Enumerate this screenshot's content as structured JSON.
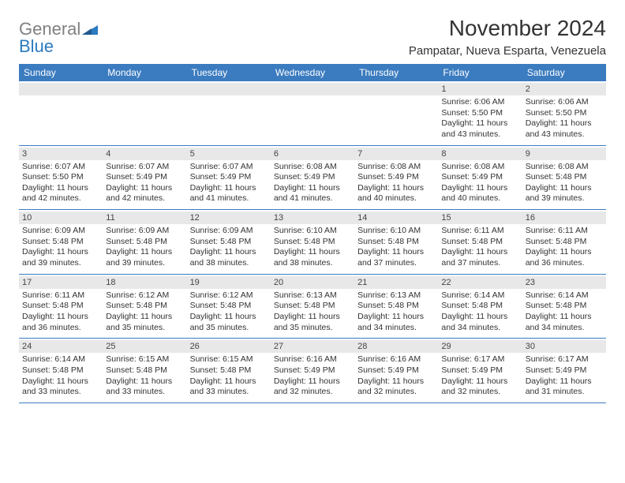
{
  "logo": {
    "word1": "General",
    "word2": "Blue"
  },
  "title": "November 2024",
  "location": "Pampatar, Nueva Esparta, Venezuela",
  "colors": {
    "header_bg": "#3b7bbf",
    "header_text": "#ffffff",
    "band_bg": "#e8e8e8",
    "border": "#3b7bbf",
    "body_text": "#333333",
    "logo_gray": "#808080",
    "logo_blue": "#2b7bbf",
    "page_bg": "#ffffff"
  },
  "typography": {
    "title_fontsize": 28,
    "location_fontsize": 15,
    "dow_fontsize": 12,
    "cell_fontsize": 10.5,
    "daynum_fontsize": 11,
    "logo_fontsize": 22
  },
  "days_of_week": [
    "Sunday",
    "Monday",
    "Tuesday",
    "Wednesday",
    "Thursday",
    "Friday",
    "Saturday"
  ],
  "weeks": [
    [
      null,
      null,
      null,
      null,
      null,
      {
        "n": "1",
        "sr": "Sunrise: 6:06 AM",
        "ss": "Sunset: 5:50 PM",
        "d1": "Daylight: 11 hours",
        "d2": "and 43 minutes."
      },
      {
        "n": "2",
        "sr": "Sunrise: 6:06 AM",
        "ss": "Sunset: 5:50 PM",
        "d1": "Daylight: 11 hours",
        "d2": "and 43 minutes."
      }
    ],
    [
      {
        "n": "3",
        "sr": "Sunrise: 6:07 AM",
        "ss": "Sunset: 5:50 PM",
        "d1": "Daylight: 11 hours",
        "d2": "and 42 minutes."
      },
      {
        "n": "4",
        "sr": "Sunrise: 6:07 AM",
        "ss": "Sunset: 5:49 PM",
        "d1": "Daylight: 11 hours",
        "d2": "and 42 minutes."
      },
      {
        "n": "5",
        "sr": "Sunrise: 6:07 AM",
        "ss": "Sunset: 5:49 PM",
        "d1": "Daylight: 11 hours",
        "d2": "and 41 minutes."
      },
      {
        "n": "6",
        "sr": "Sunrise: 6:08 AM",
        "ss": "Sunset: 5:49 PM",
        "d1": "Daylight: 11 hours",
        "d2": "and 41 minutes."
      },
      {
        "n": "7",
        "sr": "Sunrise: 6:08 AM",
        "ss": "Sunset: 5:49 PM",
        "d1": "Daylight: 11 hours",
        "d2": "and 40 minutes."
      },
      {
        "n": "8",
        "sr": "Sunrise: 6:08 AM",
        "ss": "Sunset: 5:49 PM",
        "d1": "Daylight: 11 hours",
        "d2": "and 40 minutes."
      },
      {
        "n": "9",
        "sr": "Sunrise: 6:08 AM",
        "ss": "Sunset: 5:48 PM",
        "d1": "Daylight: 11 hours",
        "d2": "and 39 minutes."
      }
    ],
    [
      {
        "n": "10",
        "sr": "Sunrise: 6:09 AM",
        "ss": "Sunset: 5:48 PM",
        "d1": "Daylight: 11 hours",
        "d2": "and 39 minutes."
      },
      {
        "n": "11",
        "sr": "Sunrise: 6:09 AM",
        "ss": "Sunset: 5:48 PM",
        "d1": "Daylight: 11 hours",
        "d2": "and 39 minutes."
      },
      {
        "n": "12",
        "sr": "Sunrise: 6:09 AM",
        "ss": "Sunset: 5:48 PM",
        "d1": "Daylight: 11 hours",
        "d2": "and 38 minutes."
      },
      {
        "n": "13",
        "sr": "Sunrise: 6:10 AM",
        "ss": "Sunset: 5:48 PM",
        "d1": "Daylight: 11 hours",
        "d2": "and 38 minutes."
      },
      {
        "n": "14",
        "sr": "Sunrise: 6:10 AM",
        "ss": "Sunset: 5:48 PM",
        "d1": "Daylight: 11 hours",
        "d2": "and 37 minutes."
      },
      {
        "n": "15",
        "sr": "Sunrise: 6:11 AM",
        "ss": "Sunset: 5:48 PM",
        "d1": "Daylight: 11 hours",
        "d2": "and 37 minutes."
      },
      {
        "n": "16",
        "sr": "Sunrise: 6:11 AM",
        "ss": "Sunset: 5:48 PM",
        "d1": "Daylight: 11 hours",
        "d2": "and 36 minutes."
      }
    ],
    [
      {
        "n": "17",
        "sr": "Sunrise: 6:11 AM",
        "ss": "Sunset: 5:48 PM",
        "d1": "Daylight: 11 hours",
        "d2": "and 36 minutes."
      },
      {
        "n": "18",
        "sr": "Sunrise: 6:12 AM",
        "ss": "Sunset: 5:48 PM",
        "d1": "Daylight: 11 hours",
        "d2": "and 35 minutes."
      },
      {
        "n": "19",
        "sr": "Sunrise: 6:12 AM",
        "ss": "Sunset: 5:48 PM",
        "d1": "Daylight: 11 hours",
        "d2": "and 35 minutes."
      },
      {
        "n": "20",
        "sr": "Sunrise: 6:13 AM",
        "ss": "Sunset: 5:48 PM",
        "d1": "Daylight: 11 hours",
        "d2": "and 35 minutes."
      },
      {
        "n": "21",
        "sr": "Sunrise: 6:13 AM",
        "ss": "Sunset: 5:48 PM",
        "d1": "Daylight: 11 hours",
        "d2": "and 34 minutes."
      },
      {
        "n": "22",
        "sr": "Sunrise: 6:14 AM",
        "ss": "Sunset: 5:48 PM",
        "d1": "Daylight: 11 hours",
        "d2": "and 34 minutes."
      },
      {
        "n": "23",
        "sr": "Sunrise: 6:14 AM",
        "ss": "Sunset: 5:48 PM",
        "d1": "Daylight: 11 hours",
        "d2": "and 34 minutes."
      }
    ],
    [
      {
        "n": "24",
        "sr": "Sunrise: 6:14 AM",
        "ss": "Sunset: 5:48 PM",
        "d1": "Daylight: 11 hours",
        "d2": "and 33 minutes."
      },
      {
        "n": "25",
        "sr": "Sunrise: 6:15 AM",
        "ss": "Sunset: 5:48 PM",
        "d1": "Daylight: 11 hours",
        "d2": "and 33 minutes."
      },
      {
        "n": "26",
        "sr": "Sunrise: 6:15 AM",
        "ss": "Sunset: 5:48 PM",
        "d1": "Daylight: 11 hours",
        "d2": "and 33 minutes."
      },
      {
        "n": "27",
        "sr": "Sunrise: 6:16 AM",
        "ss": "Sunset: 5:49 PM",
        "d1": "Daylight: 11 hours",
        "d2": "and 32 minutes."
      },
      {
        "n": "28",
        "sr": "Sunrise: 6:16 AM",
        "ss": "Sunset: 5:49 PM",
        "d1": "Daylight: 11 hours",
        "d2": "and 32 minutes."
      },
      {
        "n": "29",
        "sr": "Sunrise: 6:17 AM",
        "ss": "Sunset: 5:49 PM",
        "d1": "Daylight: 11 hours",
        "d2": "and 32 minutes."
      },
      {
        "n": "30",
        "sr": "Sunrise: 6:17 AM",
        "ss": "Sunset: 5:49 PM",
        "d1": "Daylight: 11 hours",
        "d2": "and 31 minutes."
      }
    ]
  ]
}
